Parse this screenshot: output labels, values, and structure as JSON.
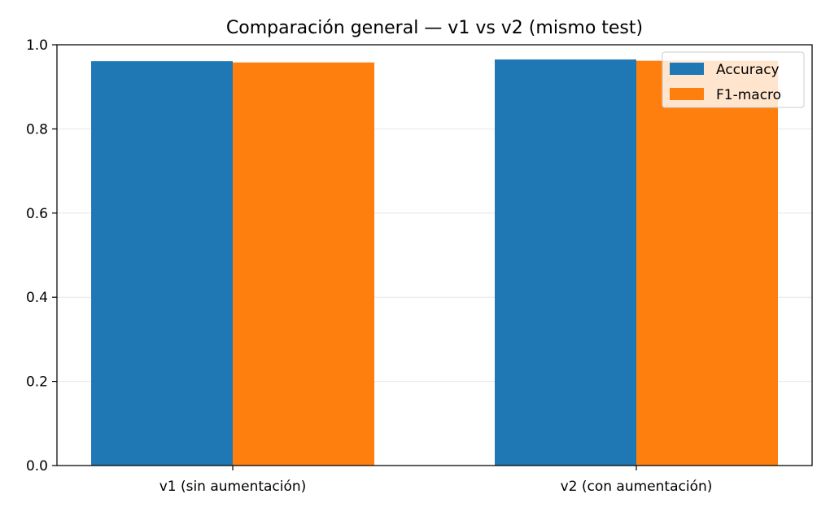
{
  "chart_data": {
    "type": "bar",
    "title": "Comparación general — v1 vs v2 (mismo test)",
    "xlabel": "",
    "ylabel": "",
    "categories": [
      "v1 (sin aumentación)",
      "v2 (con aumentación)"
    ],
    "series": [
      {
        "name": "Accuracy",
        "values": [
          0.961,
          0.965
        ],
        "color": "#1f77b4"
      },
      {
        "name": "F1-macro",
        "values": [
          0.958,
          0.962
        ],
        "color": "#ff7f0e"
      }
    ],
    "ylim": [
      0,
      1.0
    ],
    "yticks": [
      "0.0",
      "0.2",
      "0.4",
      "0.6",
      "0.8",
      "1.0"
    ],
    "grid": "y",
    "legend_position": "top-right"
  }
}
